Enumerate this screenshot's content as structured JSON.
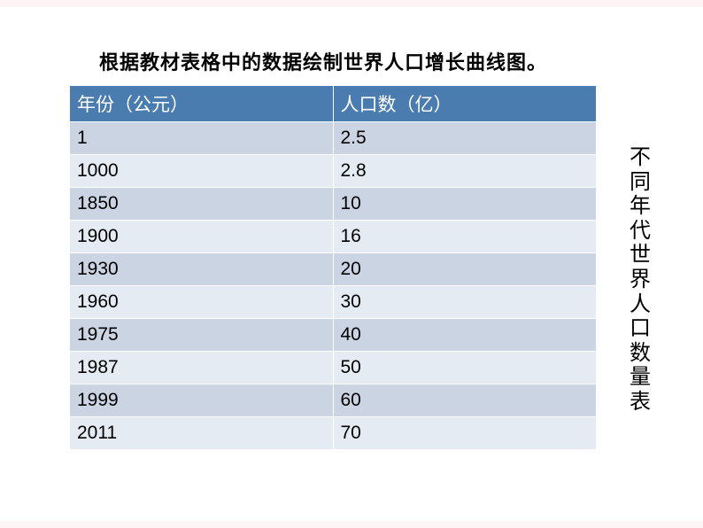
{
  "title": "根据教材表格中的数据绘制世界人口增长曲线图。",
  "vertical_title": "不同年代世界人口数量表",
  "table": {
    "header_bg": "#4a7cb0",
    "header_text_color": "#ffffff",
    "row_dark_bg": "#cad4e2",
    "row_light_bg": "#e5ebf2",
    "border_color": "#ffffff",
    "cell_text_color": "#000000",
    "font_size": 21,
    "columns": [
      "年份（公元）",
      "人口数（亿）"
    ],
    "rows": [
      [
        "1",
        "2.5"
      ],
      [
        "1000",
        "2.8"
      ],
      [
        "1850",
        "10"
      ],
      [
        "1900",
        "16"
      ],
      [
        "1930",
        "20"
      ],
      [
        "1960",
        "30"
      ],
      [
        "1975",
        "40"
      ],
      [
        "1987",
        "50"
      ],
      [
        "1999",
        "60"
      ],
      [
        "2011",
        "70"
      ]
    ]
  },
  "background_color": "#fdf5f5",
  "page_bg": "#ffffff"
}
